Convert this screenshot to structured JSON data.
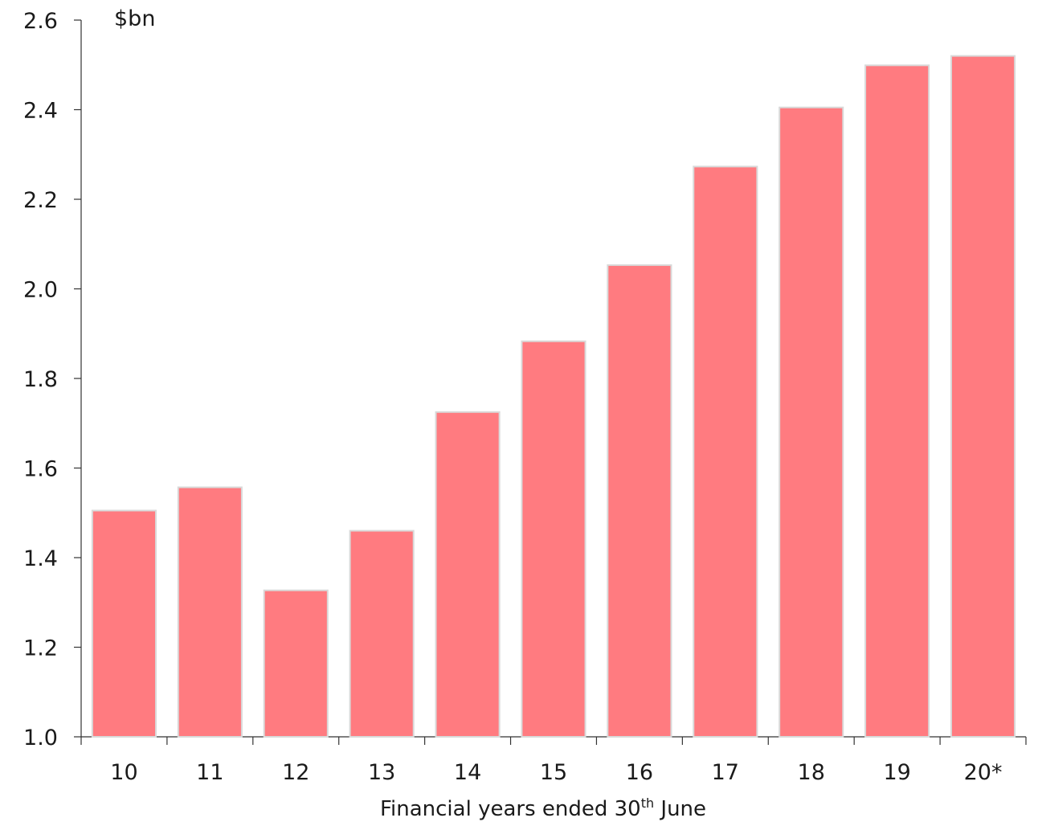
{
  "chart_data": {
    "type": "bar",
    "categories": [
      "10",
      "11",
      "12",
      "13",
      "14",
      "15",
      "16",
      "17",
      "18",
      "19",
      "20*"
    ],
    "values": [
      1.505,
      1.557,
      1.327,
      1.46,
      1.725,
      1.883,
      2.053,
      2.273,
      2.405,
      2.499,
      2.52
    ],
    "ylim": [
      1.0,
      2.6
    ],
    "yticks": [
      "1.0",
      "1.2",
      "1.4",
      "1.6",
      "1.8",
      "2.0",
      "2.2",
      "2.4",
      "2.6"
    ],
    "unit_label": "$bn",
    "xlabel": {
      "before": "Financial years ended 30",
      "superscript": "th",
      "after": " June"
    },
    "bar_color": "#ff7b80",
    "bar_edge_color": "#d9d9d9",
    "grid": false,
    "legend": "none"
  }
}
